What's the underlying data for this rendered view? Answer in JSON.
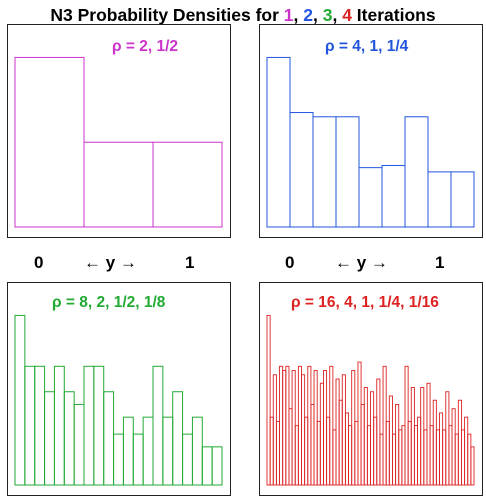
{
  "title": {
    "prefix": "N3 Probability Densities for ",
    "n1": "1",
    "sep1": ", ",
    "n2": "2",
    "sep2": ", ",
    "n3": "3",
    "sep3": ", ",
    "n4": "4",
    "suffix": " Iterations"
  },
  "axis": {
    "left": "0",
    "arrow": "← y →",
    "right": "1"
  },
  "colors": {
    "iter1": "#cc33cc",
    "iter2": "#2255dd",
    "iter3": "#22aa33",
    "iter4": "#dd2222"
  },
  "chart_data": [
    {
      "type": "bar",
      "label": "ρ = 2, 1/2",
      "color": "#cc33cc",
      "ylim": [
        0,
        4.6
      ],
      "values": [
        4,
        2,
        2
      ]
    },
    {
      "type": "bar",
      "label": "ρ = 4, 1, 1/4",
      "color": "#2255dd",
      "ylim": [
        0,
        4.6
      ],
      "values": [
        4,
        2.7,
        2.6,
        2.6,
        1.4,
        1.45,
        2.6,
        1.3,
        1.3
      ]
    },
    {
      "type": "bar",
      "label": "ρ = 8, 2, 1/2, 1/8",
      "color": "#22aa33",
      "ylim": [
        0,
        4.6
      ],
      "values": [
        4.0,
        2.8,
        2.8,
        2.2,
        2.8,
        2.2,
        1.9,
        2.8,
        2.8,
        2.2,
        1.2,
        1.6,
        1.2,
        1.6,
        2.8,
        1.6,
        2.2,
        1.2,
        1.6,
        0.9,
        0.9
      ]
    },
    {
      "type": "bar",
      "label": "ρ = 16, 4, 1, 1/4, 1/16",
      "color": "#dd2222",
      "ylim": [
        0,
        4.6
      ],
      "values": [
        4.0,
        1.6,
        2.6,
        1.5,
        2.8,
        2.7,
        2.8,
        1.8,
        2.7,
        1.4,
        2.8,
        2.6,
        1.6,
        2.8,
        1.9,
        2.7,
        1.5,
        2.4,
        2.7,
        1.6,
        2.8,
        1.3,
        2.5,
        2.0,
        2.6,
        1.7,
        1.4,
        2.7,
        1.5,
        2.9,
        1.9,
        2.3,
        1.4,
        2.2,
        1.6,
        2.5,
        1.2,
        2.8,
        1.5,
        2.1,
        1.2,
        1.9,
        1.3,
        1.4,
        2.8,
        1.5,
        2.3,
        1.4,
        1.6,
        2.3,
        1.3,
        2.4,
        1.4,
        2.0,
        1.3,
        1.7,
        1.3,
        2.2,
        1.4,
        1.8,
        1.2,
        2.0,
        1.3,
        1.6,
        1.2,
        0.9
      ]
    }
  ]
}
